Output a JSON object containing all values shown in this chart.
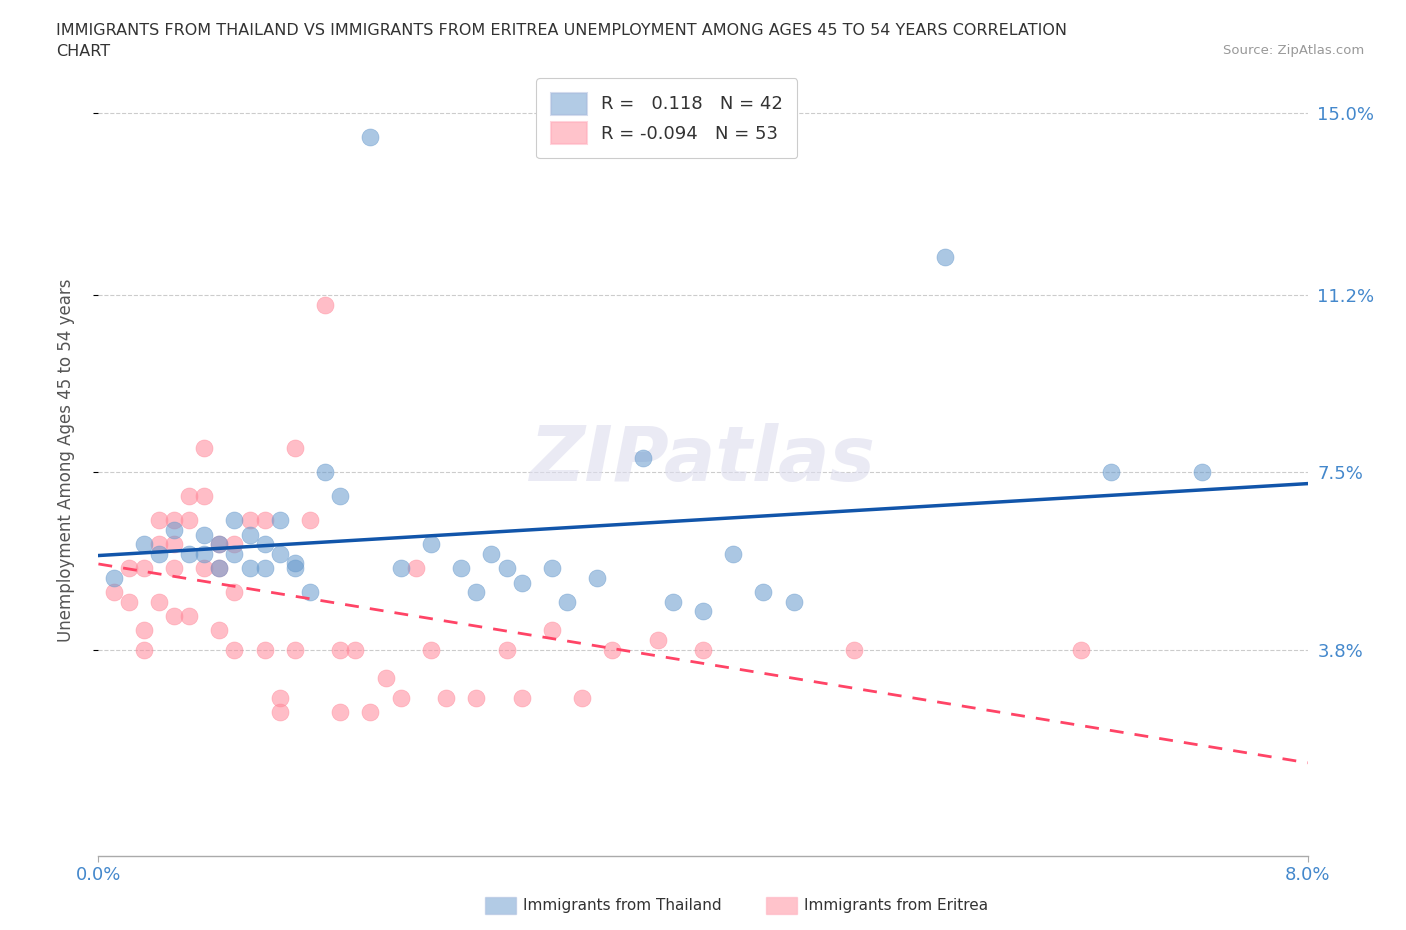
{
  "title_line1": "IMMIGRANTS FROM THAILAND VS IMMIGRANTS FROM ERITREA UNEMPLOYMENT AMONG AGES 45 TO 54 YEARS CORRELATION",
  "title_line2": "CHART",
  "source_text": "Source: ZipAtlas.com",
  "ylabel": "Unemployment Among Ages 45 to 54 years",
  "xlabel_thailand": "Immigrants from Thailand",
  "xlabel_eritrea": "Immigrants from Eritrea",
  "watermark": "ZIPatlas",
  "xlim": [
    0.0,
    0.08
  ],
  "ylim": [
    -0.005,
    0.16
  ],
  "ytick_vals": [
    0.038,
    0.075,
    0.112,
    0.15
  ],
  "ytick_labels": [
    "3.8%",
    "7.5%",
    "11.2%",
    "15.0%"
  ],
  "xtick_vals": [
    0.0,
    0.08
  ],
  "xtick_labels": [
    "0.0%",
    "8.0%"
  ],
  "thailand_color": "#6699CC",
  "eritrea_color": "#FF8899",
  "thailand_line_color": "#1155AA",
  "eritrea_line_color": "#FF4466",
  "R_thailand": 0.118,
  "N_thailand": 42,
  "R_eritrea": -0.094,
  "N_eritrea": 53,
  "thailand_x": [
    0.001,
    0.003,
    0.004,
    0.005,
    0.006,
    0.007,
    0.007,
    0.008,
    0.008,
    0.009,
    0.009,
    0.01,
    0.01,
    0.011,
    0.011,
    0.012,
    0.012,
    0.013,
    0.013,
    0.014,
    0.015,
    0.016,
    0.018,
    0.02,
    0.022,
    0.024,
    0.025,
    0.026,
    0.027,
    0.028,
    0.03,
    0.031,
    0.033,
    0.036,
    0.038,
    0.04,
    0.042,
    0.044,
    0.046,
    0.056,
    0.067,
    0.073
  ],
  "thailand_y": [
    0.053,
    0.06,
    0.058,
    0.063,
    0.058,
    0.062,
    0.058,
    0.06,
    0.055,
    0.065,
    0.058,
    0.062,
    0.055,
    0.06,
    0.055,
    0.065,
    0.058,
    0.056,
    0.055,
    0.05,
    0.075,
    0.07,
    0.145,
    0.055,
    0.06,
    0.055,
    0.05,
    0.058,
    0.055,
    0.052,
    0.055,
    0.048,
    0.053,
    0.078,
    0.048,
    0.046,
    0.058,
    0.05,
    0.048,
    0.12,
    0.075,
    0.075
  ],
  "eritrea_x": [
    0.001,
    0.002,
    0.002,
    0.003,
    0.003,
    0.003,
    0.004,
    0.004,
    0.004,
    0.005,
    0.005,
    0.005,
    0.005,
    0.006,
    0.006,
    0.006,
    0.007,
    0.007,
    0.007,
    0.008,
    0.008,
    0.008,
    0.009,
    0.009,
    0.009,
    0.01,
    0.011,
    0.011,
    0.012,
    0.012,
    0.013,
    0.013,
    0.014,
    0.015,
    0.016,
    0.016,
    0.017,
    0.018,
    0.019,
    0.02,
    0.021,
    0.022,
    0.023,
    0.025,
    0.027,
    0.028,
    0.03,
    0.032,
    0.034,
    0.037,
    0.04,
    0.05,
    0.065
  ],
  "eritrea_y": [
    0.05,
    0.055,
    0.048,
    0.055,
    0.042,
    0.038,
    0.065,
    0.06,
    0.048,
    0.065,
    0.06,
    0.055,
    0.045,
    0.07,
    0.065,
    0.045,
    0.08,
    0.07,
    0.055,
    0.06,
    0.055,
    0.042,
    0.06,
    0.05,
    0.038,
    0.065,
    0.065,
    0.038,
    0.028,
    0.025,
    0.08,
    0.038,
    0.065,
    0.11,
    0.038,
    0.025,
    0.038,
    0.025,
    0.032,
    0.028,
    0.055,
    0.038,
    0.028,
    0.028,
    0.038,
    0.028,
    0.042,
    0.028,
    0.038,
    0.04,
    0.038,
    0.038,
    0.038
  ]
}
